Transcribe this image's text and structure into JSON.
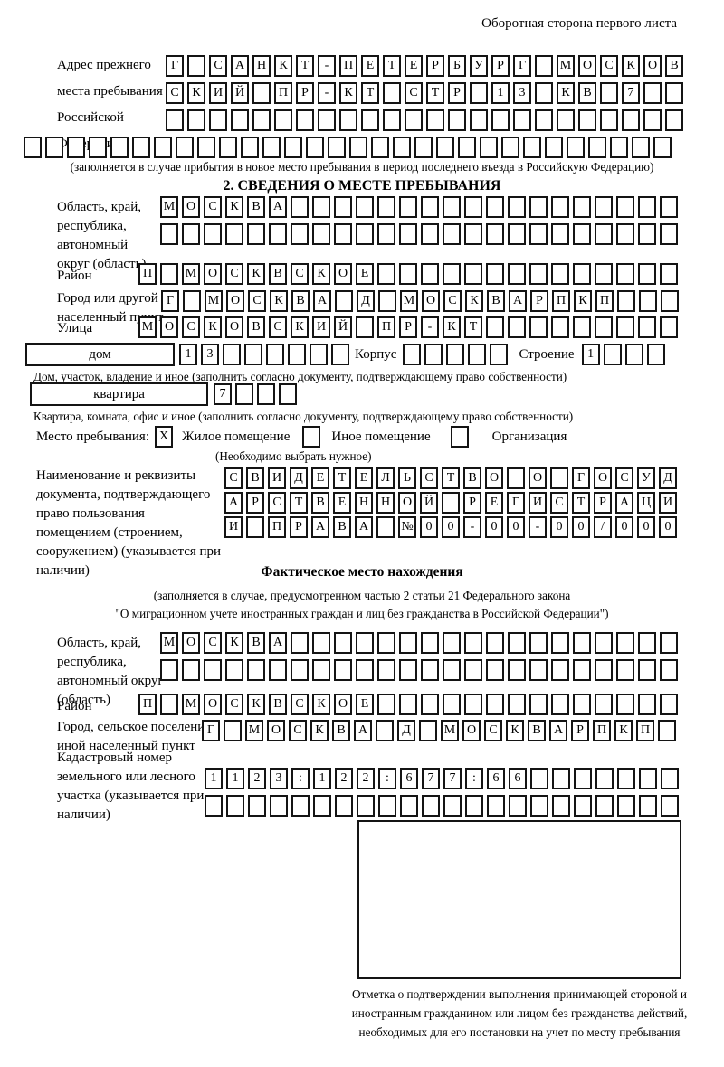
{
  "header": {
    "note": "Оборотная сторона первого листа"
  },
  "prev_address": {
    "label": "Адрес прежнего места пребывания в Российской Федерации",
    "row1": {
      "len": 24,
      "text": "Г САНКТ-ПЕТЕРБУРГ МОСКОВ"
    },
    "row2": {
      "len": 24,
      "text": "СКИЙ ПР-КТ СТР 13 КВ 7"
    },
    "row3": {
      "len": 24,
      "text": ""
    },
    "row4": {
      "len": 30,
      "text": ""
    },
    "note": "(заполняется в случае прибытия в новое место пребывания в период последнего въезда в Российскую Федерацию)"
  },
  "section2": {
    "title": "2. СВЕДЕНИЯ О МЕСТЕ ПРЕБЫВАНИЯ",
    "oblast": {
      "label": "Область, край, республика, автономный округ (область)",
      "row1": {
        "len": 24,
        "text": "МОСКВА"
      },
      "row2": {
        "len": 24,
        "text": ""
      }
    },
    "raion": {
      "label": "Район",
      "row": {
        "len": 25,
        "text": "П МОСКВСКОЕ"
      }
    },
    "gorod": {
      "label": "Город или другой населенный пункт",
      "row": {
        "len": 24,
        "text": "Г МОСКВА Д МОСКВАРПКП"
      }
    },
    "ulitsa": {
      "label": "Улица",
      "row": {
        "len": 25,
        "text": "МОСКОВСКИЙ ПР-КТ"
      }
    },
    "dom": {
      "box_label": "дом",
      "cells": {
        "len": 8,
        "text": "13"
      },
      "korpus_label": "Корпус",
      "korpus_cells": {
        "len": 5,
        "text": ""
      },
      "stroenie_label": "Строение",
      "stroenie_cells": {
        "len": 4,
        "text": "1"
      }
    },
    "dom_note": "Дом, участок, владение и иное (заполнить согласно документу, подтверждающему право собственности)",
    "kvartira": {
      "box_label": "квартира",
      "cells": {
        "len": 4,
        "text": "7"
      }
    },
    "kvartira_note": "Квартира, комната, офис и иное (заполнить согласно документу, подтверждающему право собственности)",
    "mesto": {
      "label": "Место пребывания:",
      "options": [
        {
          "mark": "X",
          "label": "Жилое помещение"
        },
        {
          "mark": "",
          "label": "Иное помещение"
        },
        {
          "mark": "",
          "label": "Организация"
        }
      ],
      "note": "(Необходимо выбрать нужное)"
    },
    "document": {
      "label": "Наименование и реквизиты документа, подтверждающего право пользования помещением (строением, сооружением) (указывается при наличии)",
      "row1": {
        "len": 21,
        "text": "СВИДЕТЕЛЬСТВО О ГОСУД"
      },
      "row2": {
        "len": 21,
        "text": "АРСТВЕННОЙ РЕГИСТРАЦИ"
      },
      "row3": {
        "len": 21,
        "text": "И ПРАВА №00-00-00/000"
      }
    }
  },
  "fact": {
    "title": "Фактическое место нахождения",
    "note1": "(заполняется в случае, предусмотренном частью 2 статьи 21 Федерального закона",
    "note2": "\"О миграционном учете иностранных граждан и лиц без гражданства в Российской Федерации\")",
    "oblast": {
      "label": "Область, край, республика, автономный округ (область)",
      "row1": {
        "len": 24,
        "text": "МОСКВА"
      },
      "row2": {
        "len": 24,
        "text": ""
      }
    },
    "raion": {
      "label": "Район",
      "row": {
        "len": 25,
        "text": "П МОСКВСКОЕ"
      }
    },
    "gorod": {
      "label": "Город, сельское поселение, иной населенный пункт",
      "row": {
        "len": 22,
        "text": "Г МОСКВА Д МОСКВАРПКП"
      }
    },
    "kadastr": {
      "label": "Кадастровый номер земельного или лесного участка (указывается при наличии)",
      "row1": {
        "len": 22,
        "text": "1123:122:677:66"
      },
      "row2": {
        "len": 22,
        "text": ""
      }
    },
    "stamp_note": "Отметка о подтверждении выполнения принимающей стороной и иностранным гражданином или лицом без гражданства действий, необходимых для его постановки на учет по месту пребывания"
  }
}
